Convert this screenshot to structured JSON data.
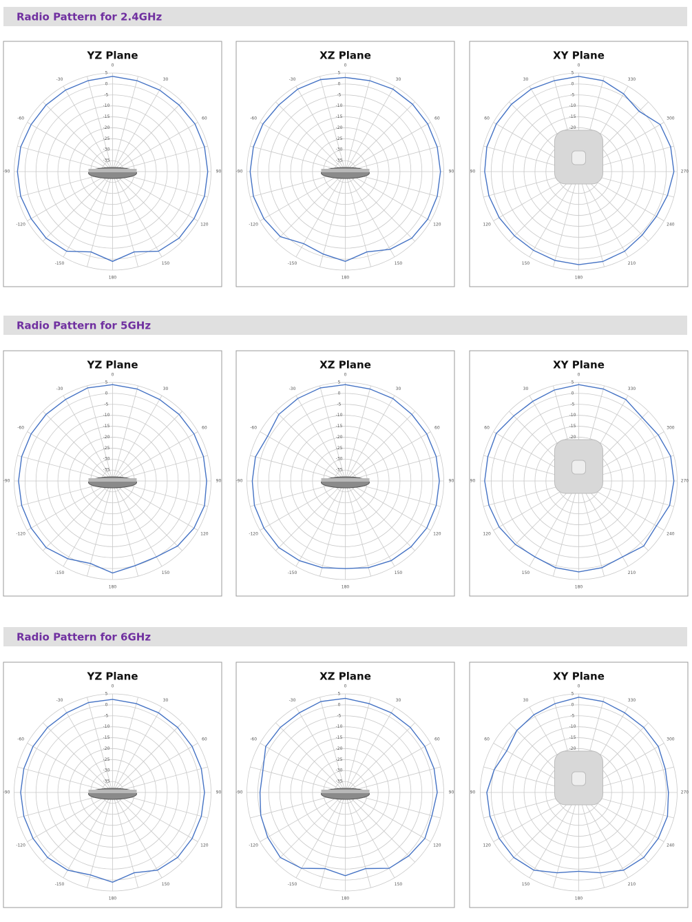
{
  "sections": [
    {
      "title": "Radio Pattern for 2.4GHz"
    },
    {
      "title": "Radio Pattern for 5GHz"
    },
    {
      "title": "Radio Pattern for 6GHz"
    }
  ],
  "chart_data": [
    {
      "type": "polar",
      "title": "YZ Plane",
      "direction": "clockwise",
      "color": "#4472c4",
      "x": [
        0,
        15,
        30,
        45,
        60,
        75,
        90,
        105,
        120,
        135,
        150,
        165,
        180,
        195,
        210,
        225,
        240,
        255,
        270,
        285,
        300,
        315,
        330,
        345
      ],
      "values": [
        3.5,
        3,
        3,
        3,
        3.5,
        3.5,
        3.5,
        3.5,
        3,
        3,
        2,
        -2,
        1,
        -2,
        2,
        3,
        3,
        3.5,
        3.5,
        3.5,
        3,
        3,
        3,
        3
      ],
      "xlim": [
        0,
        360
      ],
      "xticks": [
        0,
        30,
        60,
        90,
        120,
        150,
        180,
        {
          "value": 210,
          "label": "-150"
        },
        {
          "value": 240,
          "label": "-120"
        },
        {
          "value": 270,
          "label": "-90"
        },
        {
          "value": 300,
          "label": "-60"
        },
        {
          "value": 330,
          "label": "-30"
        }
      ],
      "ylim": [
        -40,
        5
      ],
      "yticks": [
        5,
        0,
        -5,
        -10,
        -15,
        -20,
        -25,
        -30,
        -35
      ]
    },
    {
      "type": "polar",
      "title": "XZ Plane",
      "direction": "clockwise",
      "color": "#4472c4",
      "x": [
        0,
        15,
        30,
        45,
        60,
        75,
        90,
        105,
        120,
        135,
        150,
        165,
        180,
        195,
        210,
        225,
        240,
        255,
        270,
        285,
        300,
        315,
        330,
        345
      ],
      "values": [
        3,
        3,
        3.5,
        3.5,
        3.5,
        3.5,
        3.5,
        3.5,
        3.5,
        3,
        1,
        -2,
        1,
        -1,
        -2,
        2,
        3,
        3.5,
        3.5,
        3.5,
        3.5,
        3,
        3.5,
        3.5
      ],
      "xlim": [
        0,
        360
      ],
      "xticks": [
        0,
        30,
        60,
        90,
        120,
        150,
        180,
        {
          "value": 210,
          "label": "-150"
        },
        {
          "value": 240,
          "label": "-120"
        },
        {
          "value": 270,
          "label": "-90"
        },
        {
          "value": 300,
          "label": "-60"
        },
        {
          "value": 330,
          "label": "-30"
        }
      ],
      "ylim": [
        -40,
        5
      ],
      "yticks": [
        5,
        0,
        -5,
        -10,
        -15,
        -20,
        -25,
        -30,
        -35
      ]
    },
    {
      "type": "polar",
      "title": "XY Plane",
      "direction": "counterclockwise",
      "color": "#4472c4",
      "x": [
        0,
        15,
        30,
        45,
        60,
        75,
        90,
        105,
        120,
        135,
        150,
        165,
        180,
        195,
        210,
        225,
        240,
        255,
        270,
        285,
        300,
        315,
        330,
        345
      ],
      "values": [
        3.5,
        3,
        3.5,
        3.5,
        3.5,
        3.5,
        3,
        2.5,
        2,
        1.5,
        1.5,
        2,
        2.5,
        2.5,
        2,
        1,
        1,
        2,
        3.5,
        3.5,
        3,
        -1,
        1,
        3
      ],
      "xlim": [
        0,
        360
      ],
      "xticks": [
        0,
        30,
        60,
        90,
        120,
        150,
        180,
        210,
        240,
        270,
        300,
        330
      ],
      "ylim": [
        -40,
        5
      ],
      "yticks": [
        5,
        0,
        -5,
        -10,
        -15,
        -20,
        -25,
        -30,
        -35
      ]
    },
    {
      "type": "polar",
      "title": "YZ Plane",
      "direction": "clockwise",
      "color": "#4472c4",
      "x": [
        0,
        15,
        30,
        45,
        60,
        75,
        90,
        105,
        120,
        135,
        150,
        165,
        180,
        195,
        210,
        225,
        240,
        255,
        270,
        285,
        300,
        315,
        330,
        345
      ],
      "values": [
        4,
        3.5,
        3,
        3,
        3,
        3,
        3,
        3.5,
        3,
        2,
        0,
        0,
        2,
        -1,
        1,
        3,
        3,
        3,
        3,
        3,
        3,
        3,
        3,
        4
      ],
      "xlim": [
        0,
        360
      ],
      "xticks": [
        0,
        30,
        60,
        90,
        120,
        150,
        180,
        {
          "value": 210,
          "label": "-150"
        },
        {
          "value": 240,
          "label": "-120"
        },
        {
          "value": 270,
          "label": "-90"
        },
        {
          "value": 300,
          "label": "-60"
        },
        {
          "value": 330,
          "label": "-30"
        }
      ],
      "ylim": [
        -40,
        5
      ],
      "yticks": [
        5,
        0,
        -5,
        -10,
        -15,
        -20,
        -25,
        -30,
        -35
      ]
    },
    {
      "type": "polar",
      "title": "XZ Plane",
      "direction": "clockwise",
      "color": "#4472c4",
      "x": [
        0,
        15,
        30,
        45,
        60,
        75,
        90,
        105,
        120,
        135,
        150,
        165,
        180,
        195,
        210,
        225,
        240,
        255,
        270,
        285,
        300,
        315,
        330,
        345
      ],
      "values": [
        4,
        3.5,
        3.5,
        3,
        3,
        3,
        3,
        3,
        3,
        2.5,
        2,
        1,
        0,
        1,
        2,
        3,
        3,
        3,
        2.5,
        2.5,
        1,
        3,
        3.5,
        4
      ],
      "xlim": [
        0,
        360
      ],
      "xticks": [
        0,
        30,
        60,
        90,
        120,
        150,
        180,
        {
          "value": 210,
          "label": "-150"
        },
        {
          "value": 240,
          "label": "-120"
        },
        {
          "value": 270,
          "label": "-90"
        },
        {
          "value": 300,
          "label": "-60"
        },
        {
          "value": 330,
          "label": "-30"
        }
      ],
      "ylim": [
        -40,
        5
      ],
      "yticks": [
        5,
        0,
        -5,
        -10,
        -15,
        -20,
        -25,
        -30,
        -35
      ]
    },
    {
      "type": "polar",
      "title": "XY Plane",
      "direction": "counterclockwise",
      "color": "#4472c4",
      "x": [
        0,
        15,
        30,
        45,
        60,
        75,
        90,
        105,
        120,
        135,
        150,
        165,
        180,
        195,
        210,
        225,
        240,
        255,
        270,
        285,
        300,
        315,
        330,
        345
      ],
      "values": [
        4,
        3,
        2,
        2,
        3.5,
        3,
        3,
        2.5,
        2,
        1,
        0,
        1,
        1.5,
        1,
        0,
        2,
        1,
        3,
        3.5,
        3.5,
        2,
        1,
        3,
        3.5
      ],
      "xlim": [
        0,
        360
      ],
      "xticks": [
        0,
        30,
        60,
        90,
        120,
        150,
        180,
        210,
        240,
        270,
        300,
        330
      ],
      "ylim": [
        -40,
        5
      ],
      "yticks": [
        5,
        0,
        -5,
        -10,
        -15,
        -20,
        -25,
        -30,
        -35
      ]
    },
    {
      "type": "polar",
      "title": "YZ Plane",
      "direction": "clockwise",
      "color": "#4472c4",
      "x": [
        0,
        15,
        30,
        45,
        60,
        75,
        90,
        105,
        120,
        135,
        150,
        165,
        180,
        195,
        210,
        225,
        240,
        255,
        270,
        285,
        300,
        315,
        330,
        345
      ],
      "values": [
        2.5,
        2,
        2,
        2,
        2,
        2,
        2,
        2,
        2,
        2,
        1,
        -2,
        1,
        -1,
        1,
        2,
        2,
        2,
        2,
        2,
        2,
        2,
        2,
        2.5
      ],
      "xlim": [
        0,
        360
      ],
      "xticks": [
        0,
        30,
        60,
        90,
        120,
        150,
        180,
        {
          "value": 210,
          "label": "-150"
        },
        {
          "value": 240,
          "label": "-120"
        },
        {
          "value": 270,
          "label": "-90"
        },
        {
          "value": 300,
          "label": "-60"
        },
        {
          "value": 330,
          "label": "-30"
        }
      ],
      "ylim": [
        -40,
        5
      ],
      "yticks": [
        5,
        0,
        -5,
        -10,
        -15,
        -20,
        -25,
        -30,
        -35
      ]
    },
    {
      "type": "polar",
      "title": "XZ Plane",
      "direction": "clockwise",
      "color": "#4472c4",
      "x": [
        0,
        15,
        30,
        45,
        60,
        75,
        90,
        105,
        120,
        135,
        150,
        165,
        180,
        195,
        210,
        225,
        240,
        255,
        270,
        285,
        300,
        315,
        330,
        345
      ],
      "values": [
        3,
        2,
        2,
        2,
        2,
        2,
        2,
        1,
        2,
        1,
        0,
        -4,
        -2,
        -4,
        0,
        2,
        1,
        0,
        -1,
        -1,
        2,
        2,
        2,
        3
      ],
      "xlim": [
        0,
        360
      ],
      "xticks": [
        0,
        30,
        60,
        90,
        120,
        150,
        180,
        {
          "value": 210,
          "label": "-150"
        },
        {
          "value": 240,
          "label": "-120"
        },
        {
          "value": 270,
          "label": "-90"
        },
        {
          "value": 300,
          "label": "-60"
        },
        {
          "value": 330,
          "label": "-30"
        }
      ],
      "ylim": [
        -40,
        5
      ],
      "yticks": [
        5,
        0,
        -5,
        -10,
        -15,
        -20,
        -25,
        -30,
        -35
      ]
    },
    {
      "type": "polar",
      "title": "XY Plane",
      "direction": "counterclockwise",
      "color": "#4472c4",
      "x": [
        0,
        15,
        30,
        45,
        60,
        75,
        90,
        105,
        120,
        135,
        150,
        165,
        180,
        195,
        210,
        225,
        240,
        255,
        270,
        285,
        300,
        315,
        330,
        345
      ],
      "values": [
        3.5,
        2,
        1,
        0,
        -2,
        0,
        2,
        2,
        2,
        2,
        1,
        -2,
        -4,
        -2,
        1,
        2,
        2,
        2,
        1,
        1,
        2,
        2,
        2,
        3
      ],
      "xlim": [
        0,
        360
      ],
      "xticks": [
        0,
        30,
        60,
        90,
        120,
        150,
        180,
        210,
        240,
        270,
        300,
        330
      ],
      "ylim": [
        -40,
        5
      ],
      "yticks": [
        5,
        0,
        -5,
        -10,
        -15,
        -20,
        -25,
        -30,
        -35
      ]
    }
  ]
}
